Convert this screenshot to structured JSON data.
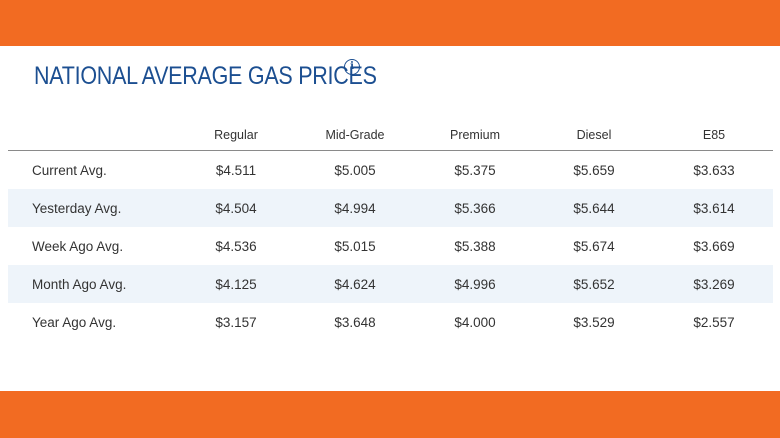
{
  "header": {
    "title": "NATIONAL AVERAGE GAS PRICES",
    "info_icon": "info-icon"
  },
  "colors": {
    "brand_orange": "#f26b22",
    "title_blue": "#1c4f91",
    "row_shade": "#eef4fa"
  },
  "table": {
    "columns": [
      "Regular",
      "Mid-Grade",
      "Premium",
      "Diesel",
      "E85"
    ],
    "rows": [
      {
        "label": "Current Avg.",
        "values": [
          "$4.511",
          "$5.005",
          "$5.375",
          "$5.659",
          "$3.633"
        ]
      },
      {
        "label": "Yesterday Avg.",
        "values": [
          "$4.504",
          "$4.994",
          "$5.366",
          "$5.644",
          "$3.614"
        ]
      },
      {
        "label": "Week Ago Avg.",
        "values": [
          "$4.536",
          "$5.015",
          "$5.388",
          "$5.674",
          "$3.669"
        ]
      },
      {
        "label": "Month Ago Avg.",
        "values": [
          "$4.125",
          "$4.624",
          "$4.996",
          "$5.652",
          "$3.269"
        ]
      },
      {
        "label": "Year Ago Avg.",
        "values": [
          "$3.157",
          "$3.648",
          "$4.000",
          "$3.529",
          "$2.557"
        ]
      }
    ]
  }
}
